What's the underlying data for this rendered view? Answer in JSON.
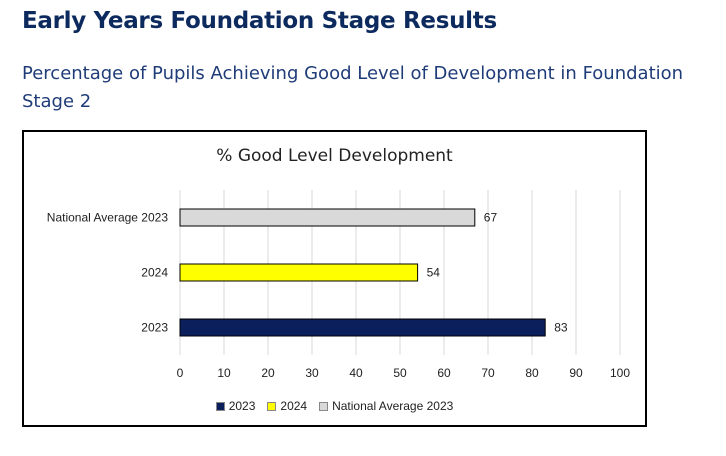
{
  "page": {
    "title": "Early Years Foundation Stage Results",
    "subtitle": "Percentage of Pupils Achieving Good Level of Development in Foundation Stage 2"
  },
  "chart_data": {
    "type": "bar",
    "orientation": "horizontal",
    "title": "% Good Level Development",
    "categories": [
      "2023",
      "2024",
      "National Average 2023"
    ],
    "values": [
      83,
      54,
      67
    ],
    "colors": [
      "#0b1f5c",
      "#ffff00",
      "#d9d9d9"
    ],
    "data_labels": [
      "83",
      "54",
      "67"
    ],
    "xlim": [
      0,
      100
    ],
    "x_ticks": [
      0,
      10,
      20,
      30,
      40,
      50,
      60,
      70,
      80,
      90,
      100
    ],
    "grid": "vertical",
    "legend": {
      "placement": "bottom",
      "entries": [
        {
          "label": "2023",
          "color": "#0b1f5c"
        },
        {
          "label": "2024",
          "color": "#ffff00"
        },
        {
          "label": "National Average 2023",
          "color": "#d9d9d9"
        }
      ]
    }
  }
}
